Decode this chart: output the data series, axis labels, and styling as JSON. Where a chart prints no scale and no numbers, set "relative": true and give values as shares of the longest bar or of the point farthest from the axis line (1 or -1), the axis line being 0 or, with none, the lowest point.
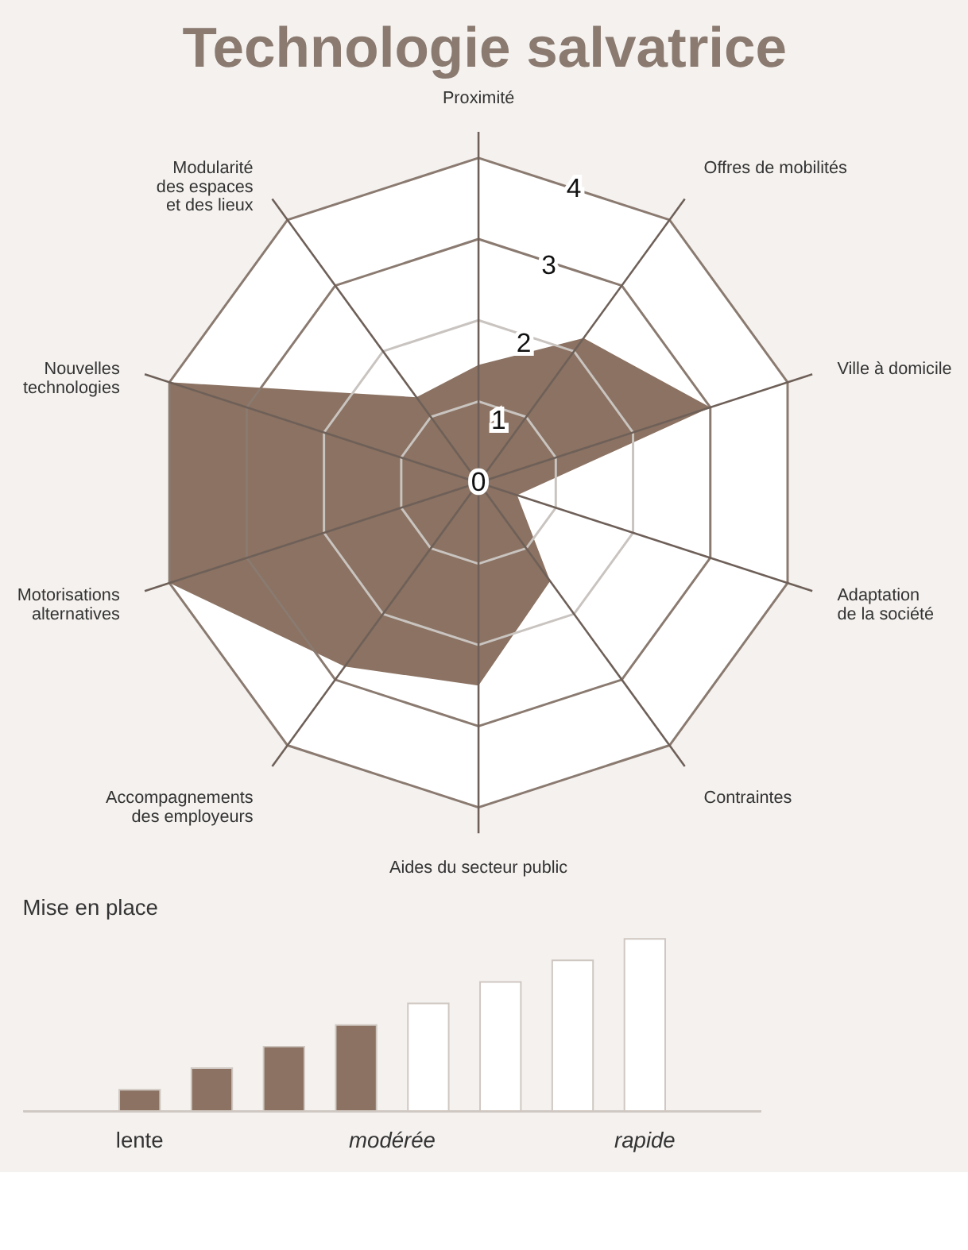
{
  "chart_data": [
    {
      "type": "radar",
      "title": "Technologie salvatrice",
      "categories": [
        "Proximité",
        "Offres de mobilités",
        "Ville à domicile",
        "Adaptation\nde la société",
        "Contraintes",
        "Aides du secteur public",
        "Accompagnements\ndes employeurs",
        "Motorisations\nalternatives",
        "Nouvelles\ntechnologies",
        "Modularité\ndes espaces\net des lieux"
      ],
      "series": [
        {
          "color": "#8b7262",
          "values": [
            1.45,
            2.2,
            3.0,
            0.5,
            1.5,
            2.5,
            2.8,
            4.0,
            4.0,
            1.3
          ]
        }
      ],
      "ylim": [
        0,
        4
      ],
      "yticks": [
        0,
        1,
        2,
        3,
        4
      ],
      "grid": true
    },
    {
      "type": "bar",
      "title": "Mise en place",
      "relative": true,
      "categories": [
        null,
        null,
        null,
        null,
        null,
        null,
        null,
        null
      ],
      "values": [
        0.125,
        0.25,
        0.375,
        0.5,
        0.625,
        0.75,
        0.875,
        1.0
      ],
      "colors": [
        "#8b7262",
        "#8b7262",
        "#8b7262",
        "#8b7262",
        "#ffffff",
        "#ffffff",
        "#ffffff",
        "#ffffff"
      ],
      "annotations": [
        "lente",
        "modérée",
        "rapide"
      ]
    }
  ]
}
